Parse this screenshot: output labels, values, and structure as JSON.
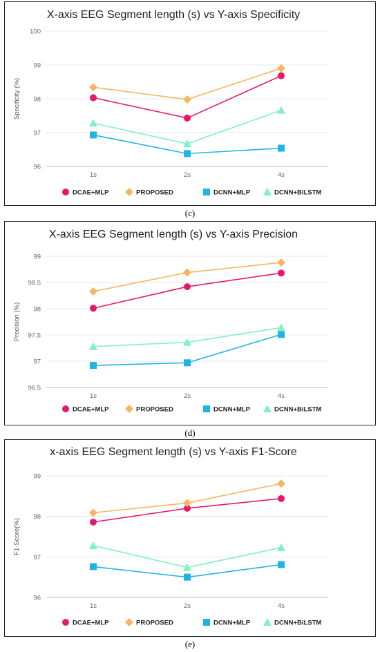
{
  "panels": [
    {
      "caption": "(c)",
      "chart_data": {
        "type": "line",
        "title": "X-axis EEG Segment length (s) vs Y-axis Specificity",
        "xlabel": "",
        "ylabel": "Specificity (%)",
        "categories": [
          "1s",
          "2s",
          "4s"
        ],
        "ylim": [
          96,
          100
        ],
        "yticks": [
          "96",
          "97",
          "98",
          "99",
          "100"
        ],
        "grid": true,
        "legend_position": "bottom",
        "series": [
          {
            "name": "DCAE+MLP",
            "values": [
              98.03,
              97.43,
              98.68
            ],
            "color": "#e6186b",
            "marker": "circle"
          },
          {
            "name": "PROPOSED",
            "values": [
              98.34,
              97.98,
              98.9
            ],
            "color": "#f6b55e",
            "marker": "diamond"
          },
          {
            "name": "DCNN+MLP",
            "values": [
              96.93,
              96.38,
              96.54
            ],
            "color": "#1fb4e3",
            "marker": "square"
          },
          {
            "name": "DCNN+BiLSTM",
            "values": [
              97.28,
              96.67,
              97.66
            ],
            "color": "#7ff2bd",
            "marker": "triangle"
          }
        ]
      }
    },
    {
      "caption": "(d)",
      "chart_data": {
        "type": "line",
        "title": "X-axis EEG Segment length (s) vs Y-axis Precision",
        "xlabel": "",
        "ylabel": "Precision (%)",
        "categories": [
          "1s",
          "2s",
          "4s"
        ],
        "ylim": [
          96.5,
          99
        ],
        "yticks": [
          "96.5",
          "97",
          "97.5",
          "98",
          "98.5",
          "99"
        ],
        "grid": true,
        "legend_position": "bottom",
        "series": [
          {
            "name": "DCAE+MLP",
            "values": [
              98.01,
              98.42,
              98.68
            ],
            "color": "#e6186b",
            "marker": "circle"
          },
          {
            "name": "PROPOSED",
            "values": [
              98.33,
              98.69,
              98.88
            ],
            "color": "#f6b55e",
            "marker": "diamond"
          },
          {
            "name": "DCNN+MLP",
            "values": [
              96.92,
              96.97,
              97.51
            ],
            "color": "#1fb4e3",
            "marker": "square"
          },
          {
            "name": "DCNN+BiLSTM",
            "values": [
              97.28,
              97.36,
              97.64
            ],
            "color": "#7ff2bd",
            "marker": "triangle"
          }
        ]
      }
    },
    {
      "caption": "(e)",
      "chart_data": {
        "type": "line",
        "title": "x-axis EEG Segment length (s) vs Y-axis F1-Score",
        "xlabel": "",
        "ylabel": "F1-Score(%)",
        "categories": [
          "1s",
          "2s",
          "4s"
        ],
        "ylim": [
          96,
          99
        ],
        "yticks": [
          "96",
          "97",
          "98",
          "99"
        ],
        "grid": true,
        "legend_position": "bottom",
        "series": [
          {
            "name": "DCAE+MLP",
            "values": [
              97.86,
              98.2,
              98.44
            ],
            "color": "#e6186b",
            "marker": "circle"
          },
          {
            "name": "PROPOSED",
            "values": [
              98.09,
              98.33,
              98.81
            ],
            "color": "#f6b55e",
            "marker": "diamond"
          },
          {
            "name": "DCNN+MLP",
            "values": [
              96.76,
              96.5,
              96.81
            ],
            "color": "#1fb4e3",
            "marker": "square"
          },
          {
            "name": "DCNN+BiLSTM",
            "values": [
              97.28,
              96.74,
              97.23
            ],
            "color": "#7ff2bd",
            "marker": "triangle"
          }
        ]
      }
    }
  ]
}
